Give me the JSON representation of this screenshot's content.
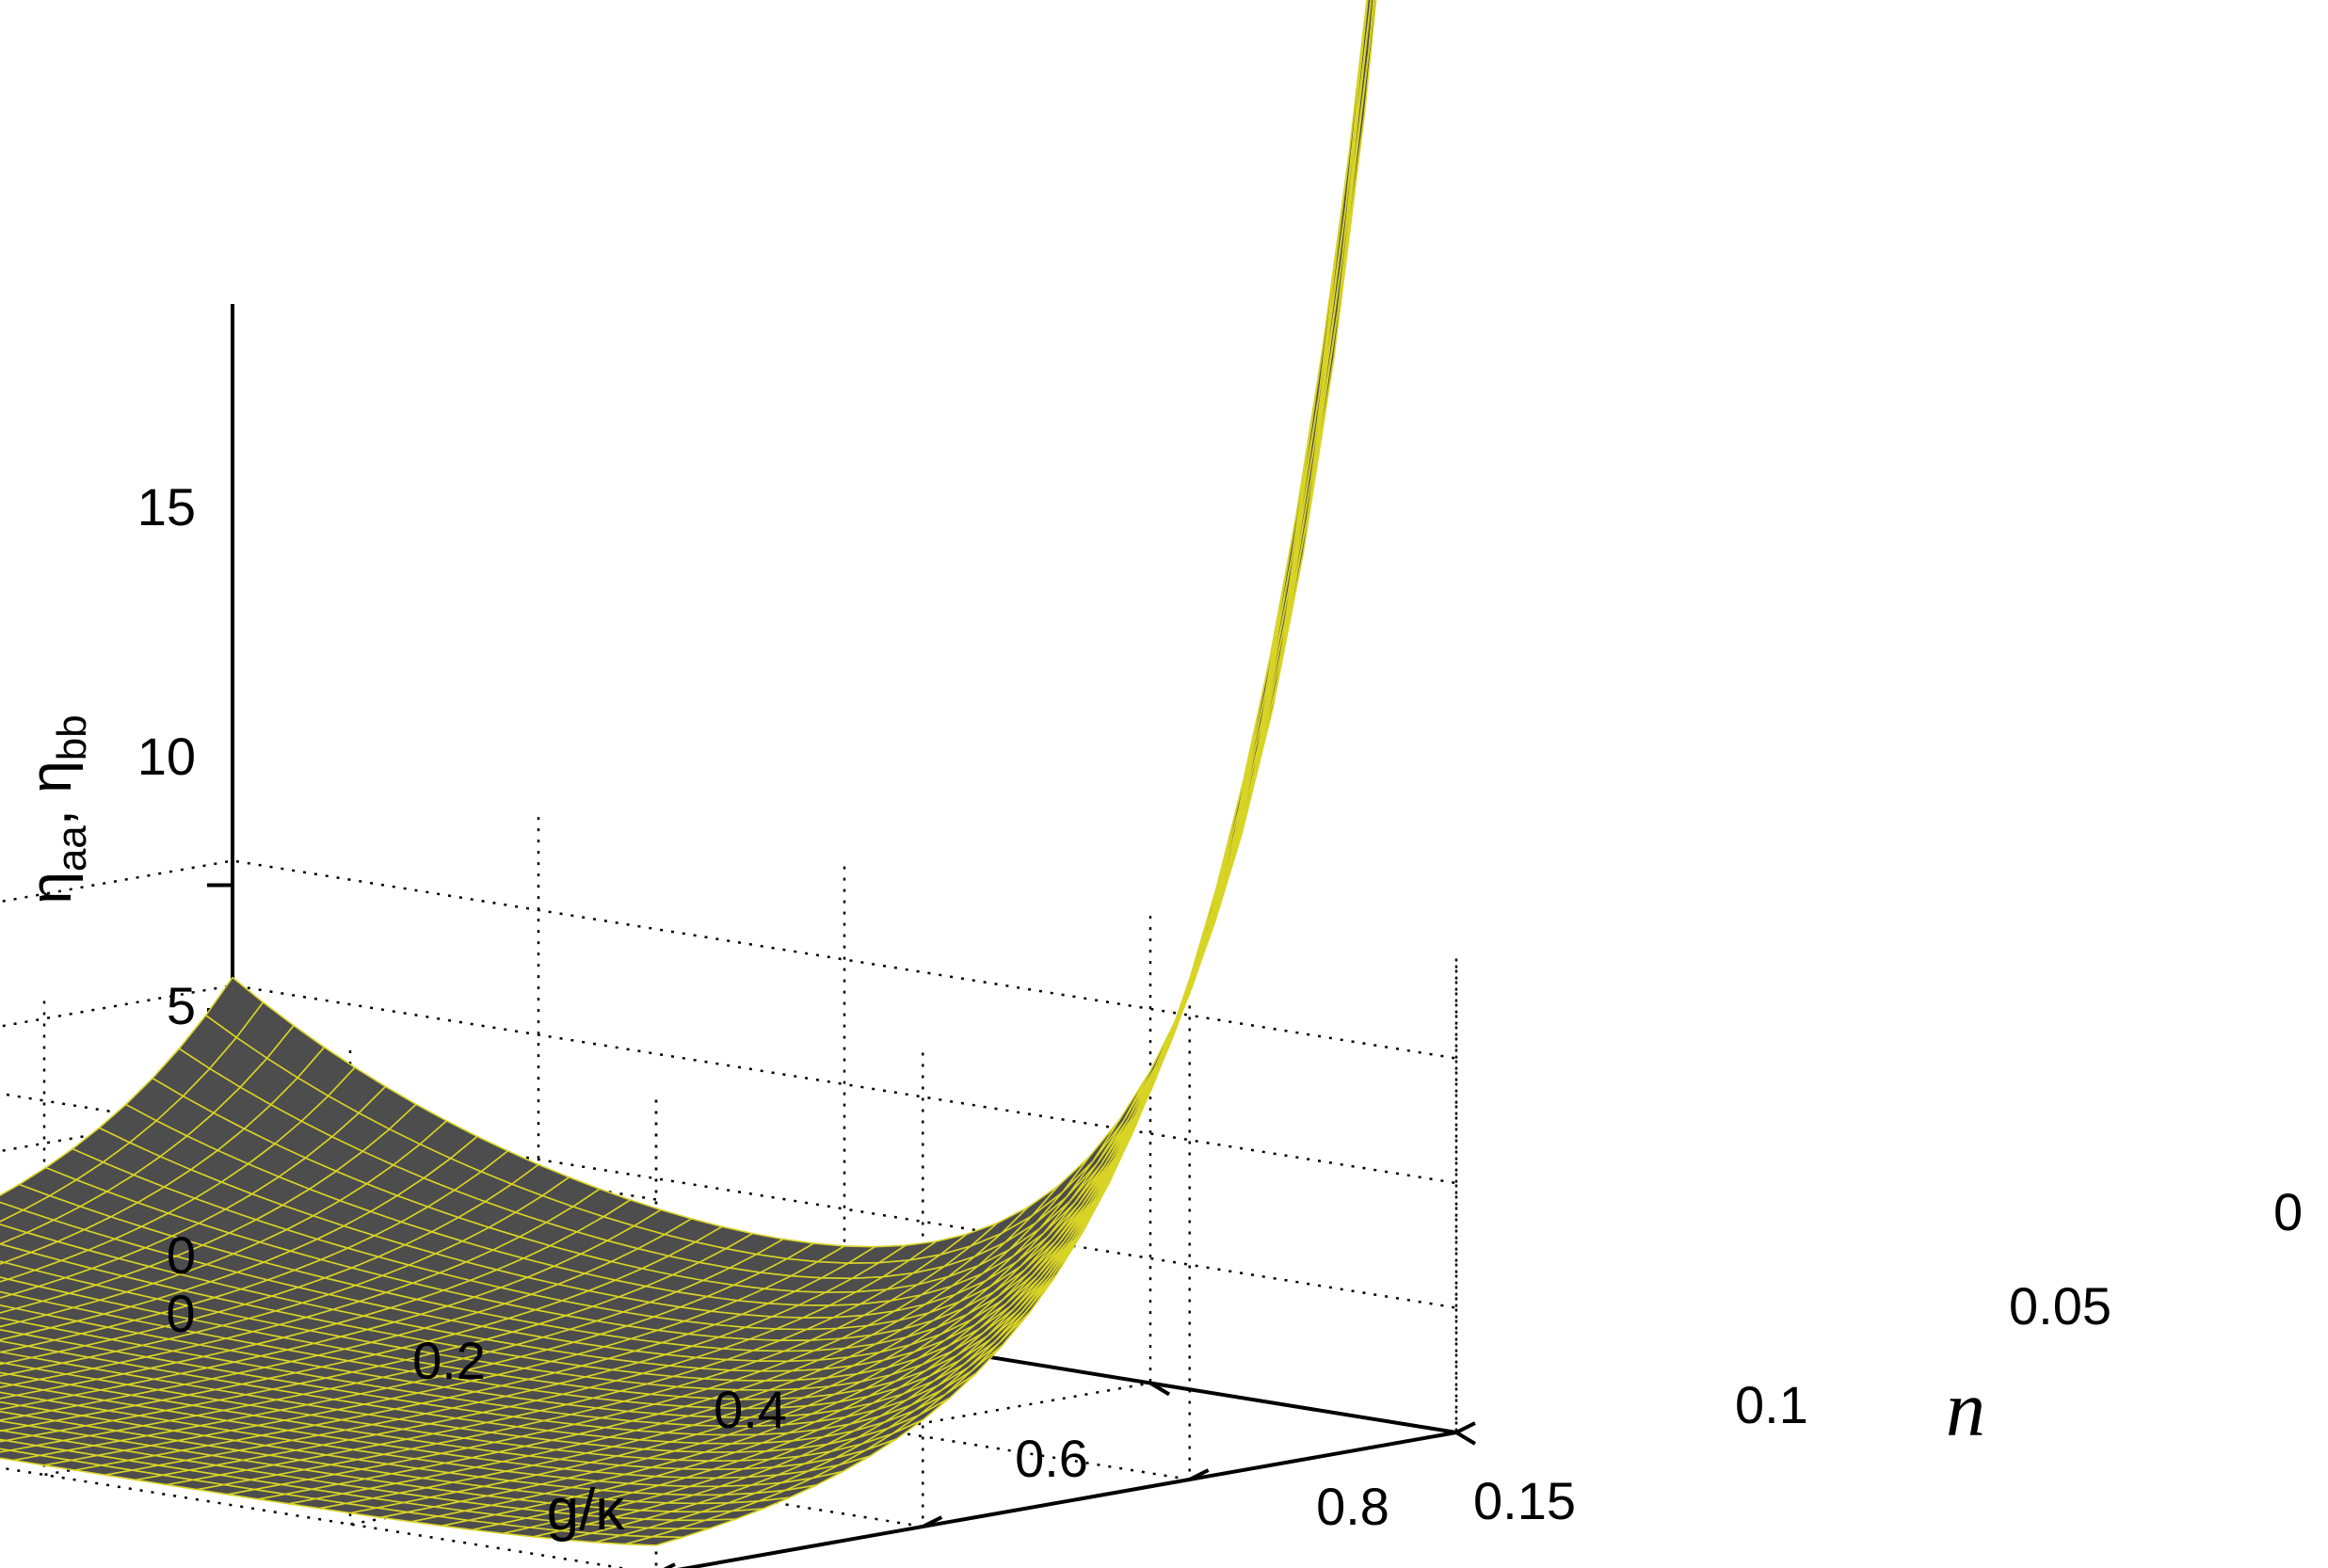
{
  "chart_data": {
    "type": "surface",
    "title": "",
    "xlabel": "g/κ",
    "ylabel": "n",
    "zlabel": "η_aa, η_bb",
    "zlabel_parts": {
      "eta1": "η",
      "sub1": "aa",
      "sep": ", ",
      "eta2": "η",
      "sub2": "bb"
    },
    "xlim": [
      0,
      0.8
    ],
    "ylim": [
      0,
      0.15
    ],
    "zlim": [
      0,
      19
    ],
    "xticks": [
      0,
      0.2,
      0.4,
      0.6,
      0.8
    ],
    "xtick_labels": [
      "0",
      "0.2",
      "0.4",
      "0.6",
      "0.8"
    ],
    "yticks": [
      0,
      0.05,
      0.1,
      0.15
    ],
    "ytick_labels": [
      "0",
      "0.05",
      "0.1",
      "0.15"
    ],
    "zticks": [
      0,
      5,
      10,
      15
    ],
    "ztick_labels": [
      "0",
      "5",
      "10",
      "15"
    ],
    "grid": true,
    "colors": {
      "face": "#4d4d4d",
      "edge": "#d8d426"
    },
    "grid_size": {
      "g_steps": 40,
      "n_steps": 30
    },
    "values_along_g_at_n_0": {
      "g": [
        0,
        0.2,
        0.4,
        0.5,
        0.6,
        0.7,
        0.8
      ],
      "z": [
        10.3,
        6.0,
        3.2,
        3.0,
        4.0,
        8.8,
        19.0
      ]
    },
    "values_along_g_at_n_0.15": {
      "g": [
        0,
        0.2,
        0.4,
        0.6,
        0.8
      ],
      "z": [
        0.35,
        0.3,
        0.3,
        0.3,
        0.35
      ]
    },
    "values_along_n_at_g_0": {
      "n": [
        0,
        0.05,
        0.1,
        0.15
      ],
      "z": [
        10.3,
        3.0,
        1.0,
        0.35
      ]
    },
    "values_along_n_at_g_0.8": {
      "n": [
        0,
        0.05,
        0.1,
        0.15
      ],
      "z": [
        19.0,
        8.0,
        2.5,
        0.35
      ]
    }
  }
}
